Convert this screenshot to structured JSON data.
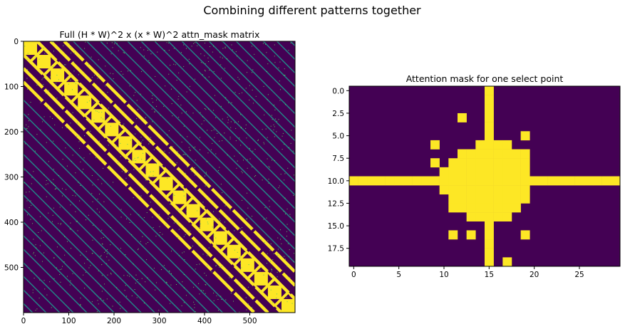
{
  "figure": {
    "suptitle": "Combining different patterns together"
  },
  "colors": {
    "background": "#440154",
    "mask": "#fde725",
    "line": "#21918c",
    "speckle": "#5ec962"
  },
  "chart_data": [
    {
      "type": "heatmap",
      "title": "Full (H * W)^2 x (x * W)^2 attn_mask matrix",
      "xlabel": "",
      "ylabel": "",
      "shape": [
        600,
        600
      ],
      "xlim": [
        0,
        600
      ],
      "ylim": [
        600,
        0
      ],
      "x_ticks": [
        0,
        100,
        200,
        300,
        400,
        500
      ],
      "y_ticks": [
        0,
        100,
        200,
        300,
        400,
        500
      ],
      "colormap": "viridis",
      "grid": false,
      "description_values": {
        "block_size": 30,
        "block_count": 20,
        "periodic_offsets": [
          30,
          60,
          90
        ]
      }
    },
    {
      "type": "heatmap",
      "title": "Attention mask for one select point",
      "xlabel": "",
      "ylabel": "",
      "shape": [
        20,
        30
      ],
      "xlim": [
        -0.5,
        29.5
      ],
      "ylim": [
        19.5,
        -0.5
      ],
      "x_ticks": [
        0,
        5,
        10,
        15,
        20,
        25
      ],
      "y_ticks": [
        0.0,
        2.5,
        5.0,
        7.5,
        10.0,
        12.5,
        15.0,
        17.5
      ],
      "y_tick_labels": [
        "0.0",
        "2.5",
        "5.0",
        "7.5",
        "10.0",
        "12.5",
        "15.0",
        "17.5"
      ],
      "colormap": "viridis",
      "grid": false,
      "query_point": {
        "row": 10,
        "col": 15
      },
      "cross": {
        "row": 10,
        "col": 15
      },
      "disc_rows": [
        {
          "row": 6,
          "from": 14,
          "to": 17
        },
        {
          "row": 7,
          "from": 12,
          "to": 19
        },
        {
          "row": 8,
          "from": 11,
          "to": 19
        },
        {
          "row": 9,
          "from": 10,
          "to": 19
        },
        {
          "row": 10,
          "from": 10,
          "to": 19
        },
        {
          "row": 11,
          "from": 10,
          "to": 19
        },
        {
          "row": 12,
          "from": 11,
          "to": 19
        },
        {
          "row": 13,
          "from": 11,
          "to": 18
        },
        {
          "row": 14,
          "from": 13,
          "to": 17
        }
      ],
      "random_points": [
        {
          "row": 3,
          "col": 12
        },
        {
          "row": 5,
          "col": 19
        },
        {
          "row": 6,
          "col": 9
        },
        {
          "row": 8,
          "col": 9
        },
        {
          "row": 16,
          "col": 11
        },
        {
          "row": 16,
          "col": 13
        },
        {
          "row": 16,
          "col": 19
        },
        {
          "row": 19,
          "col": 17
        }
      ]
    }
  ]
}
